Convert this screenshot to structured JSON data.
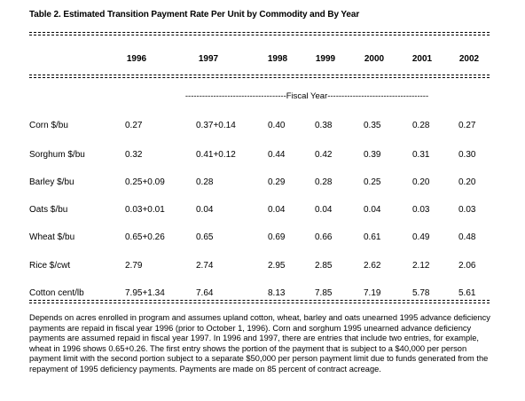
{
  "title": "Table 2.  Estimated Transition Payment Rate Per Unit by Commodity and By Year",
  "years": [
    "1996",
    "1997",
    "1998",
    "1999",
    "2000",
    "2001",
    "2002"
  ],
  "fiscal_label": "------------------------------------Fiscal Year------------------------------------",
  "rows": [
    {
      "label": "Corn $/bu",
      "values": [
        "0.27",
        "0.37+0.14",
        "0.40",
        "0.38",
        "0.35",
        "0.28",
        "0.27"
      ]
    },
    {
      "label": "Sorghum $/bu",
      "values": [
        "0.32",
        "0.41+0.12",
        "0.44",
        "0.42",
        "0.39",
        "0.31",
        "0.30"
      ]
    },
    {
      "label": "Barley $/bu",
      "values": [
        "0.25+0.09",
        "0.28",
        "0.29",
        "0.28",
        "0.25",
        "0.20",
        "0.20"
      ]
    },
    {
      "label": "Oats $/bu",
      "values": [
        "0.03+0.01",
        "0.04",
        "0.04",
        "0.04",
        "0.04",
        "0.03",
        "0.03"
      ]
    },
    {
      "label": "Wheat $/bu",
      "values": [
        "0.65+0.26",
        "0.65",
        "0.69",
        "0.66",
        "0.61",
        "0.49",
        "0.48"
      ]
    },
    {
      "label": "Rice $/cwt",
      "values": [
        "2.79",
        "2.74",
        "2.95",
        "2.85",
        "2.62",
        "2.12",
        "2.06"
      ]
    },
    {
      "label": "Cotton cent/lb",
      "values": [
        "7.95+1.34",
        "7.64",
        "8.13",
        "7.85",
        "7.19",
        "5.78",
        "5.61"
      ]
    }
  ],
  "note": "Depends on acres enrolled in program and assumes upland cotton, wheat, barley and oats unearned 1995 advance deficiency payments are repaid in fiscal year 1996 (prior to October 1, 1996).  Corn and sorghum 1995 unearned advance deficiency payments are assumed repaid in fiscal year 1997.  In 1996 and 1997, there are entries that include two entries, for example, wheat in 1996 shows 0.65+0.26.  The first entry shows the portion of the payment that is subject to a $40,000 per person payment limit with the second portion subject to a separate $50,000 per person payment limit due to funds generated from the repayment of 1995 deficiency payments.  Payments are made on 85 percent of contract acreage."
}
